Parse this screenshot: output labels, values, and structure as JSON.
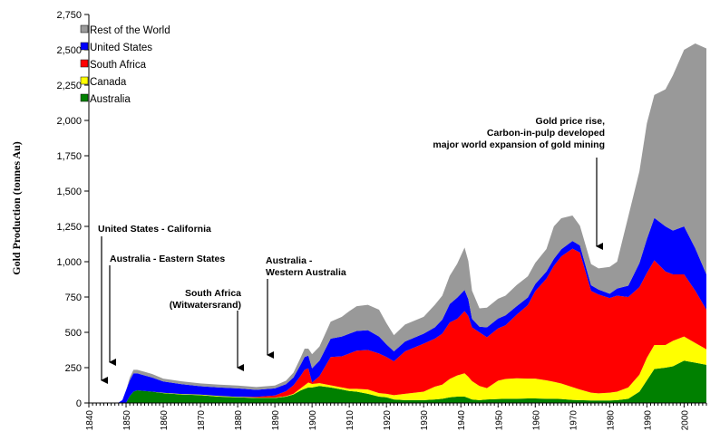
{
  "chart_data": {
    "type": "area",
    "stacked": true,
    "ylabel": "Gold Production (tonnes Au)",
    "xlabel": "",
    "xlim": [
      1840,
      2006
    ],
    "ylim": [
      0,
      2750
    ],
    "yticks": [
      0,
      250,
      500,
      750,
      1000,
      1250,
      1500,
      1750,
      2000,
      2250,
      2500,
      2750
    ],
    "ytick_labels": [
      "0",
      "250",
      "500",
      "750",
      "1,000",
      "1,250",
      "1,500",
      "1,750",
      "2,000",
      "2,250",
      "2,500",
      "2,750"
    ],
    "xticks": [
      1840,
      1850,
      1860,
      1870,
      1880,
      1890,
      1900,
      1910,
      1920,
      1930,
      1940,
      1950,
      1960,
      1970,
      1980,
      1990,
      2000
    ],
    "xtick_labels": [
      "1840",
      "1850",
      "1860",
      "1870",
      "1880",
      "1890",
      "1900",
      "1910",
      "1920",
      "1930",
      "1940",
      "1950",
      "1960",
      "1970",
      "1980",
      "1990",
      "2000"
    ],
    "grid": false,
    "legend_position": "top-left",
    "legend_order": [
      "Rest of the World",
      "United States",
      "South Africa",
      "Canada",
      "Australia"
    ],
    "x": [
      1840,
      1847,
      1848,
      1849,
      1850,
      1851,
      1852,
      1853,
      1855,
      1857,
      1860,
      1865,
      1870,
      1875,
      1880,
      1885,
      1890,
      1893,
      1895,
      1897,
      1898,
      1899,
      1900,
      1902,
      1905,
      1908,
      1910,
      1912,
      1915,
      1918,
      1920,
      1922,
      1925,
      1930,
      1933,
      1935,
      1937,
      1939,
      1941,
      1942,
      1943,
      1945,
      1947,
      1950,
      1952,
      1955,
      1958,
      1960,
      1963,
      1965,
      1967,
      1970,
      1972,
      1975,
      1977,
      1980,
      1982,
      1985,
      1988,
      1990,
      1992,
      1995,
      1997,
      2000,
      2003,
      2006
    ],
    "series": [
      {
        "name": "Australia",
        "color": "#008000",
        "values": [
          0,
          0,
          0,
          0,
          0,
          50,
          80,
          90,
          85,
          80,
          70,
          60,
          55,
          45,
          40,
          35,
          35,
          45,
          60,
          90,
          100,
          110,
          110,
          120,
          110,
          95,
          85,
          80,
          65,
          45,
          40,
          25,
          20,
          20,
          25,
          30,
          40,
          45,
          45,
          35,
          25,
          20,
          25,
          28,
          30,
          30,
          32,
          32,
          30,
          30,
          28,
          22,
          20,
          18,
          18,
          18,
          20,
          30,
          80,
          160,
          240,
          250,
          260,
          300,
          285,
          270
        ]
      },
      {
        "name": "Canada",
        "color": "#ffff00",
        "values": [
          0,
          0,
          0,
          0,
          0,
          0,
          0,
          0,
          0,
          0,
          2,
          3,
          4,
          5,
          3,
          3,
          3,
          3,
          5,
          15,
          25,
          35,
          25,
          20,
          15,
          15,
          15,
          20,
          30,
          25,
          25,
          30,
          45,
          60,
          90,
          100,
          130,
          150,
          165,
          150,
          130,
          100,
          80,
          130,
          140,
          145,
          140,
          140,
          130,
          120,
          110,
          90,
          75,
          55,
          50,
          55,
          60,
          80,
          120,
          160,
          170,
          160,
          180,
          170,
          140,
          110
        ]
      },
      {
        "name": "South Africa",
        "color": "#ff0000",
        "values": [
          0,
          0,
          0,
          0,
          0,
          0,
          0,
          0,
          0,
          0,
          0,
          0,
          0,
          0,
          0,
          5,
          15,
          35,
          60,
          90,
          110,
          100,
          10,
          50,
          200,
          220,
          250,
          270,
          280,
          280,
          260,
          240,
          300,
          340,
          340,
          360,
          400,
          400,
          440,
          430,
          380,
          380,
          360,
          370,
          380,
          450,
          520,
          620,
          720,
          820,
          900,
          980,
          970,
          720,
          700,
          670,
          680,
          640,
          620,
          600,
          600,
          520,
          470,
          440,
          370,
          280
        ]
      },
      {
        "name": "United States",
        "color": "#0000ff",
        "values": [
          0,
          0,
          3,
          20,
          90,
          110,
          130,
          120,
          110,
          100,
          80,
          70,
          60,
          60,
          60,
          50,
          50,
          50,
          55,
          80,
          90,
          90,
          100,
          110,
          130,
          140,
          140,
          140,
          140,
          120,
          90,
          70,
          70,
          70,
          80,
          100,
          130,
          150,
          150,
          120,
          60,
          40,
          70,
          70,
          70,
          60,
          55,
          50,
          50,
          50,
          50,
          55,
          50,
          40,
          35,
          30,
          50,
          80,
          170,
          240,
          300,
          320,
          310,
          340,
          300,
          250
        ]
      },
      {
        "name": "Rest of the World",
        "color": "#999999",
        "values": [
          0,
          0,
          0,
          0,
          0,
          20,
          25,
          25,
          25,
          25,
          20,
          20,
          20,
          20,
          20,
          20,
          20,
          25,
          35,
          50,
          60,
          50,
          100,
          100,
          120,
          140,
          160,
          175,
          180,
          190,
          150,
          115,
          120,
          120,
          160,
          170,
          200,
          240,
          300,
          270,
          200,
          130,
          140,
          140,
          140,
          150,
          150,
          150,
          160,
          230,
          220,
          180,
          140,
          150,
          150,
          190,
          190,
          490,
          650,
          820,
          870,
          970,
          1100,
          1250,
          1450,
          1600
        ]
      }
    ],
    "annotations": [
      {
        "lines": [
          "United States - California"
        ],
        "year": 1849.5
      },
      {
        "lines": [
          "Australia - Eastern States"
        ],
        "year": 1851
      },
      {
        "lines": [
          "South Africa",
          "(Witwatersrand)"
        ],
        "year": 1886
      },
      {
        "lines": [
          "Australia -",
          "Western Australia"
        ],
        "year": 1892
      },
      {
        "lines": [
          "Gold price rise,",
          "Carbon-in-pulp developed",
          "major world expansion of gold mining"
        ],
        "year": 1978
      }
    ]
  }
}
